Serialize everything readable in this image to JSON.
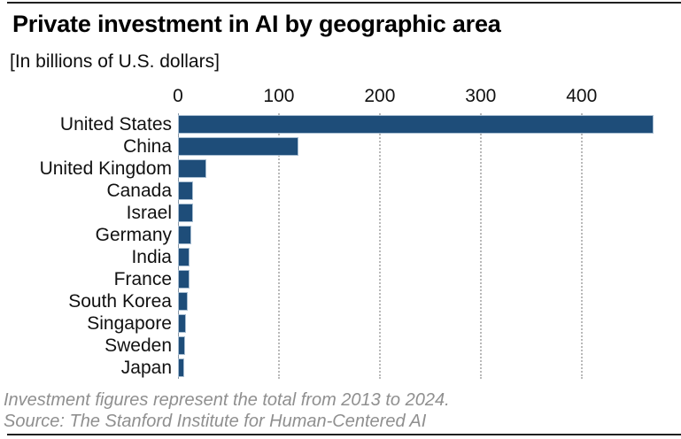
{
  "header": {
    "title": "Private investment in AI by geographic area",
    "subtitle": "[In billions of U.S. dollars]"
  },
  "chart_data": {
    "type": "bar",
    "orientation": "horizontal",
    "title": "Private investment in AI by geographic area",
    "subtitle": "[In billions of U.S. dollars]",
    "xlabel": "",
    "ylabel": "",
    "categories": [
      "United States",
      "China",
      "United Kingdom",
      "Canada",
      "Israel",
      "Germany",
      "India",
      "France",
      "South Korea",
      "Singapore",
      "Sweden",
      "Japan"
    ],
    "values": [
      471,
      119.3,
      28.2,
      15.3,
      15.0,
      13.1,
      11.3,
      11.1,
      9.9,
      7.5,
      7.3,
      5.9
    ],
    "xlim": [
      0,
      488
    ],
    "xticks": [
      0,
      100,
      200,
      300,
      400
    ],
    "grid": true,
    "legend": false,
    "bar_color": "#1e4d79"
  },
  "footer": {
    "note": "Investment figures represent the total from 2013 to 2024.",
    "source": "Source: The Stanford Institute for Human-Centered AI"
  }
}
